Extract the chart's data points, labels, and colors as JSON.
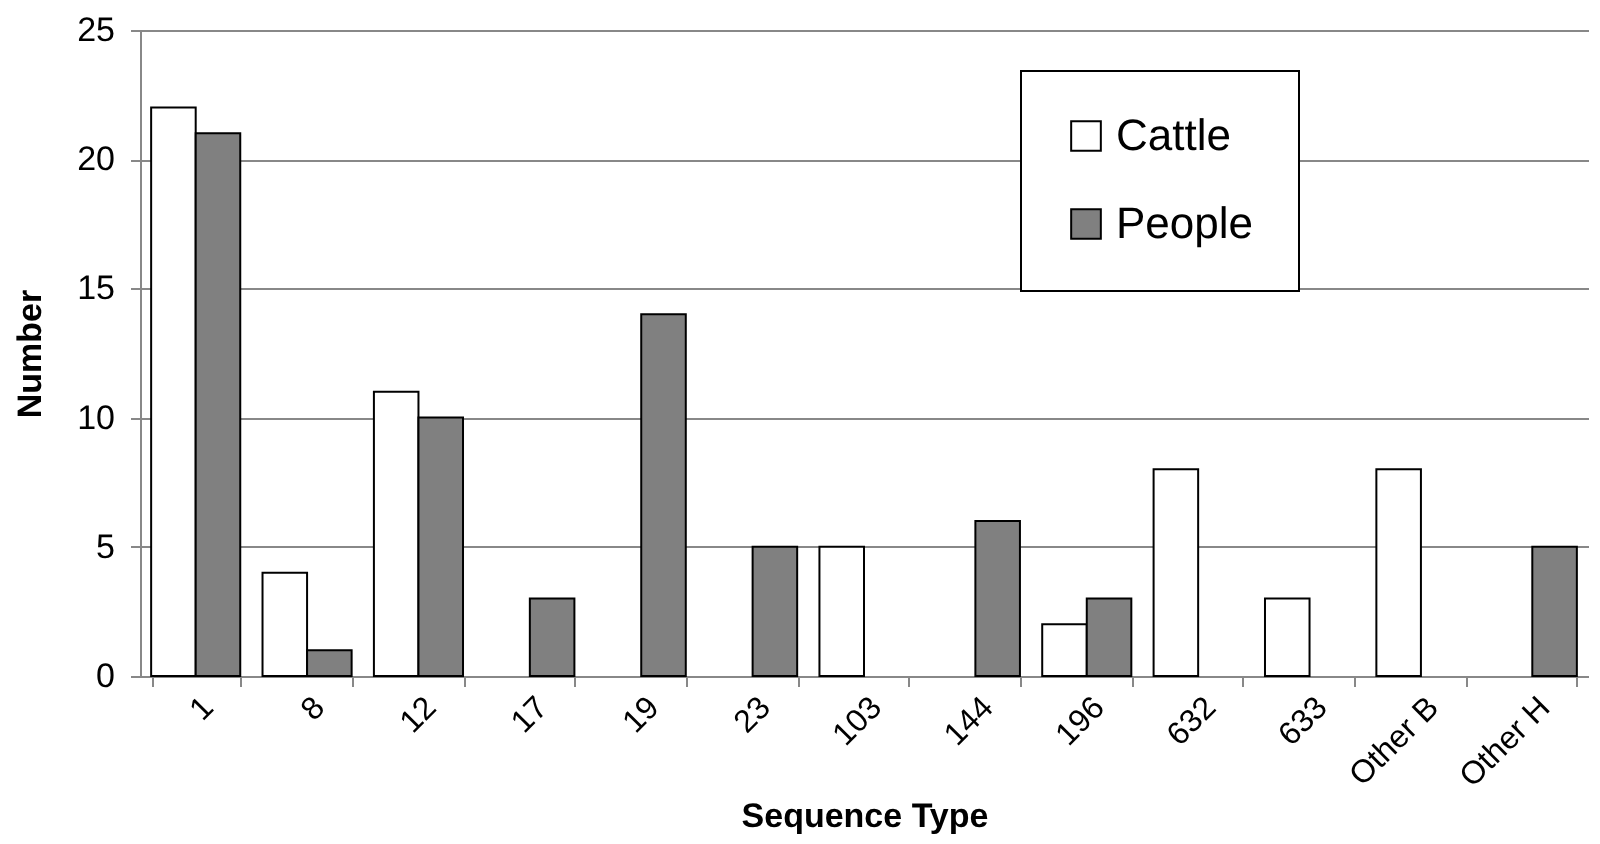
{
  "chart_data": {
    "type": "bar",
    "xlabel": "Sequence Type",
    "ylabel": "Number",
    "categories": [
      "1",
      "8",
      "12",
      "17",
      "19",
      "23",
      "103",
      "144",
      "196",
      "632",
      "633",
      "Other B",
      "Other H"
    ],
    "series": [
      {
        "name": "Cattle",
        "color": "#ffffff",
        "values": [
          22,
          4,
          11,
          null,
          null,
          null,
          5,
          null,
          2,
          8,
          3,
          8,
          null
        ]
      },
      {
        "name": "People",
        "color": "#808080",
        "values": [
          21,
          1,
          10,
          3,
          14,
          5,
          null,
          6,
          3,
          null,
          null,
          null,
          5
        ]
      }
    ],
    "ylim": [
      0,
      25
    ],
    "yticks": [
      0,
      5,
      10,
      15,
      20,
      25
    ],
    "grid": "y",
    "legend": "top right"
  }
}
